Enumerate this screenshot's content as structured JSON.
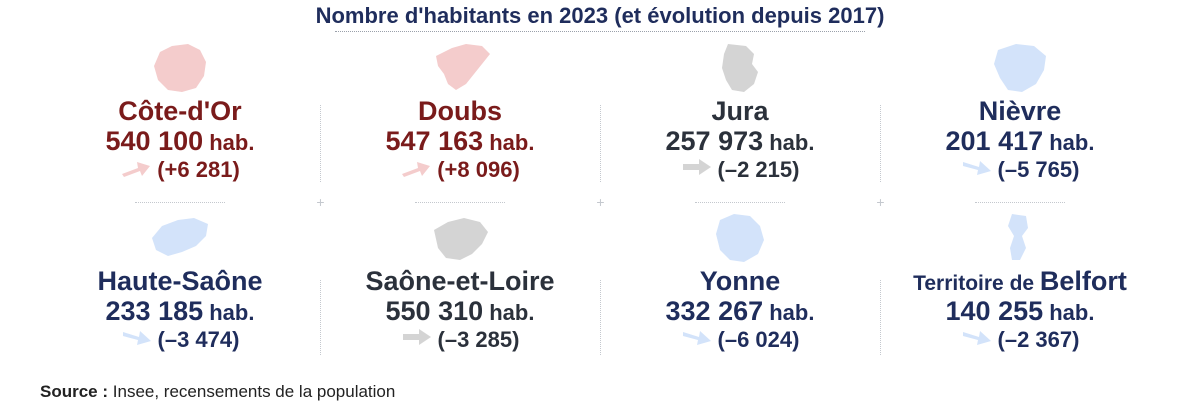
{
  "title": "Nombre d'habitants en 2023 (et évolution depuis 2017)",
  "unit": "hab.",
  "colors": {
    "increase": "#7a1b1b",
    "decrease": "#1f2d5c",
    "stable": "#2b313b",
    "increase_light": "#f4cccc",
    "decrease_light": "#d3e3fa",
    "stable_light": "#d4d4d4"
  },
  "chart_data": {
    "type": "table",
    "title": "Nombre d'habitants en 2023 (et évolution depuis 2017)",
    "columns": [
      "département",
      "population_2023",
      "evolution_depuis_2017"
    ],
    "rows": [
      {
        "name": "Côte-d'Or",
        "population": 540100,
        "population_label": "540 100",
        "change": 6281,
        "change_label": "(+6 281)",
        "trend": "increase"
      },
      {
        "name": "Doubs",
        "population": 547163,
        "population_label": "547 163",
        "change": 8096,
        "change_label": "(+8 096)",
        "trend": "increase"
      },
      {
        "name": "Jura",
        "population": 257973,
        "population_label": "257 973",
        "change": -2215,
        "change_label": "(–2 215)",
        "trend": "stable"
      },
      {
        "name": "Nièvre",
        "population": 201417,
        "population_label": "201 417",
        "change": -5765,
        "change_label": "(–5 765)",
        "trend": "decrease"
      },
      {
        "name": "Haute-Saône",
        "population": 233185,
        "population_label": "233 185",
        "change": -3474,
        "change_label": "(–3 474)",
        "trend": "decrease"
      },
      {
        "name": "Saône-et-Loire",
        "population": 550310,
        "population_label": "550 310",
        "change": -3285,
        "change_label": "(–3 285)",
        "trend": "stable"
      },
      {
        "name": "Yonne",
        "population": 332267,
        "population_label": "332 267",
        "change": -6024,
        "change_label": "(–6 024)",
        "trend": "decrease"
      },
      {
        "name_prefix": "Territoire de",
        "name": "Belfort",
        "population": 140255,
        "population_label": "140 255",
        "change": -2367,
        "change_label": "(–2 367)",
        "trend": "decrease"
      }
    ]
  },
  "source": {
    "label": "Source :",
    "text": "Insee, recensements de la population"
  }
}
